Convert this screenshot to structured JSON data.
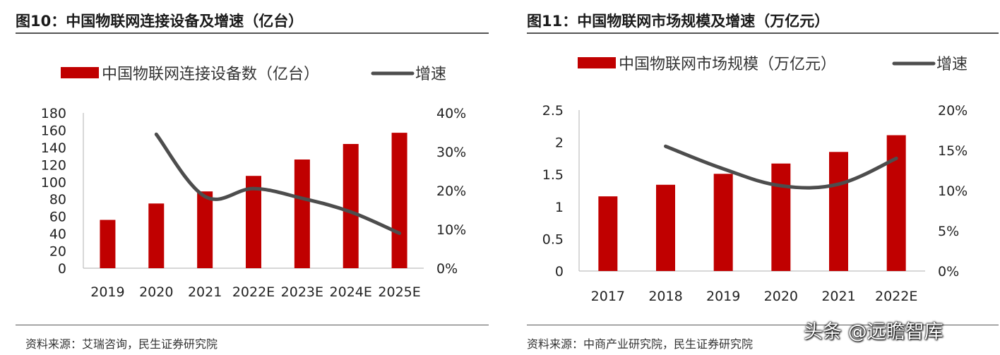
{
  "charts": [
    {
      "title": "图10：中国物联网连接设备及增速（亿台）",
      "source": "资料来源：艾瑞咨询，民生证券研究院"
    },
    {
      "title": "图11：中国物联网市场规模及增速（万亿元）",
      "source": "资料来源：中商产业研究院，民生证券研究院"
    }
  ],
  "watermark": "头条 @远瞻智库",
  "colors": {
    "bar": "#c00000",
    "line": "#4d4d4d",
    "axis": "#bfbfbf"
  },
  "chart_data": [
    {
      "type": "bar",
      "categories": [
        "2019",
        "2020",
        "2021",
        "2022E",
        "2023E",
        "2024E",
        "2025E"
      ],
      "series": [
        {
          "name": "中国物联网连接设备数（亿台）",
          "type": "bar",
          "axis": "left",
          "values": [
            56,
            75,
            89,
            107,
            126,
            144,
            157
          ]
        },
        {
          "name": "增速",
          "type": "line",
          "axis": "right",
          "values": [
            null,
            0.345,
            0.185,
            0.205,
            0.18,
            0.145,
            0.09
          ]
        }
      ],
      "y_left": {
        "min": 0,
        "max": 180,
        "step": 20,
        "ticks": [
          "0",
          "20",
          "40",
          "60",
          "80",
          "100",
          "120",
          "140",
          "160",
          "180"
        ]
      },
      "y_right": {
        "min": 0,
        "max": 0.4,
        "step": 0.1,
        "ticks": [
          "0%",
          "10%",
          "20%",
          "30%",
          "40%"
        ]
      },
      "legend_position": "top",
      "grid": false
    },
    {
      "type": "bar",
      "categories": [
        "2017",
        "2018",
        "2019",
        "2020",
        "2021",
        "2022E"
      ],
      "series": [
        {
          "name": "中国物联网市场规模（万亿元）",
          "type": "bar",
          "axis": "left",
          "values": [
            1.16,
            1.34,
            1.51,
            1.67,
            1.85,
            2.11
          ]
        },
        {
          "name": "增速",
          "type": "line",
          "axis": "right",
          "values": [
            null,
            0.155,
            0.127,
            0.106,
            0.108,
            0.14
          ]
        }
      ],
      "y_left": {
        "min": 0,
        "max": 2.5,
        "step": 0.5,
        "ticks": [
          "0",
          "0.5",
          "1",
          "1.5",
          "2",
          "2.5"
        ]
      },
      "y_right": {
        "min": 0,
        "max": 0.2,
        "step": 0.05,
        "ticks": [
          "0%",
          "5%",
          "10%",
          "15%",
          "20%"
        ]
      },
      "legend_position": "top",
      "grid": false
    }
  ]
}
